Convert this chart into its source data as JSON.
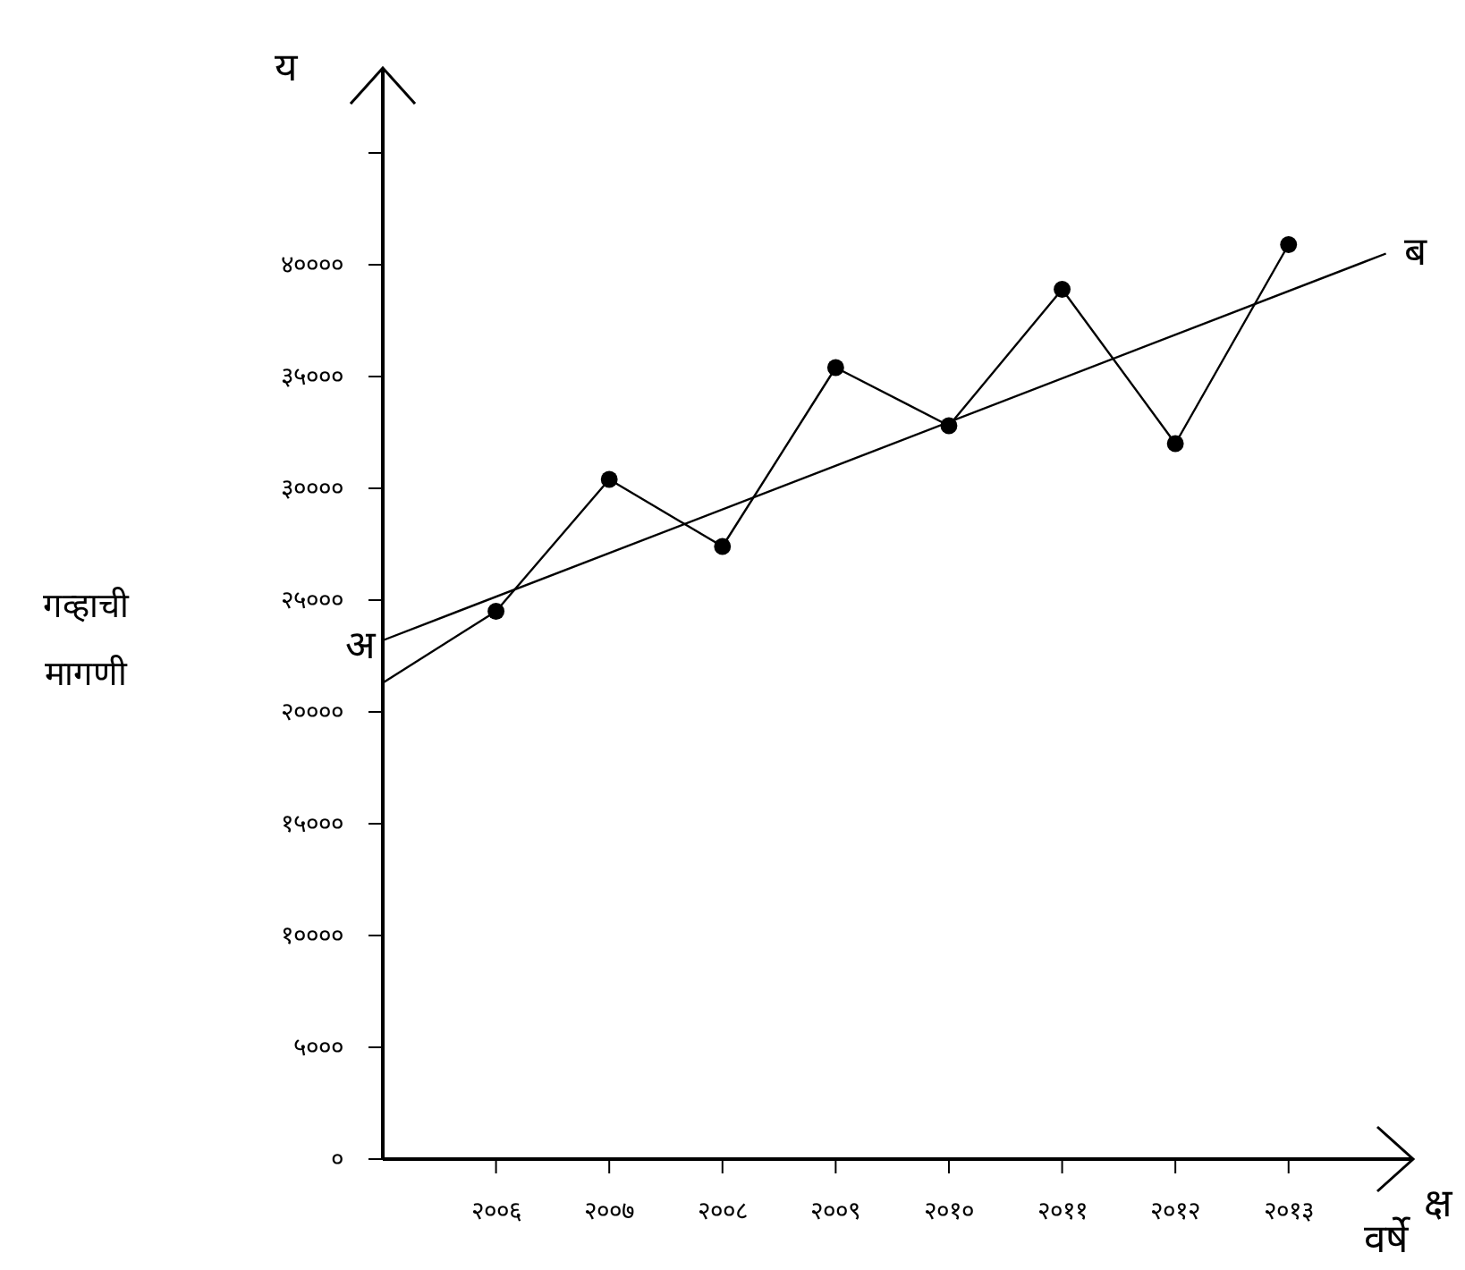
{
  "chart_data": {
    "type": "line",
    "xlabel": "वर्षे",
    "ylabel": "गव्हाची मागणी",
    "xlim": [
      2005,
      2014.1
    ],
    "ylim": [
      0,
      48800
    ],
    "xticks": [
      {
        "value": 2006,
        "label": "२००६"
      },
      {
        "value": 2007,
        "label": "२००७"
      },
      {
        "value": 2008,
        "label": "२००८"
      },
      {
        "value": 2009,
        "label": "२००९"
      },
      {
        "value": 2010,
        "label": "२०१०"
      },
      {
        "value": 2011,
        "label": "२०११"
      },
      {
        "value": 2012,
        "label": "२०१२"
      },
      {
        "value": 2013,
        "label": "२०१३"
      }
    ],
    "yticks": [
      {
        "value": 0,
        "label": "०"
      },
      {
        "value": 5000,
        "label": "५०००"
      },
      {
        "value": 10000,
        "label": "१००००"
      },
      {
        "value": 15000,
        "label": "१५०००"
      },
      {
        "value": 20000,
        "label": "२००००"
      },
      {
        "value": 25000,
        "label": "२५०००"
      },
      {
        "value": 30000,
        "label": "३००००"
      },
      {
        "value": 35000,
        "label": "३५०००"
      },
      {
        "value": 40000,
        "label": "४००००"
      },
      {
        "value": 45000,
        "label": null
      }
    ],
    "series": [
      {
        "color": "#000000",
        "x": [
          2006,
          2007,
          2008,
          2009,
          2010,
          2011,
          2012,
          2013
        ],
        "values": [
          24500,
          30400,
          27400,
          35400,
          32800,
          38900,
          32000,
          40900
        ],
        "marker": "circle"
      },
      {
        "color": "#000000",
        "x": [
          2005,
          2006
        ],
        "values": [
          21300,
          24500
        ],
        "marker": "none"
      },
      {
        "color": "#000000",
        "x": [
          2005,
          2013.86
        ],
        "values": [
          23200,
          40500
        ],
        "marker": "none"
      }
    ],
    "annotations": [
      "य",
      "क्ष",
      {
        "text": "अ",
        "x": 2005,
        "y": 23200
      },
      {
        "text": "ब",
        "x": 2013.86,
        "y": 40500
      }
    ],
    "grid": false,
    "line_style": "solid"
  }
}
